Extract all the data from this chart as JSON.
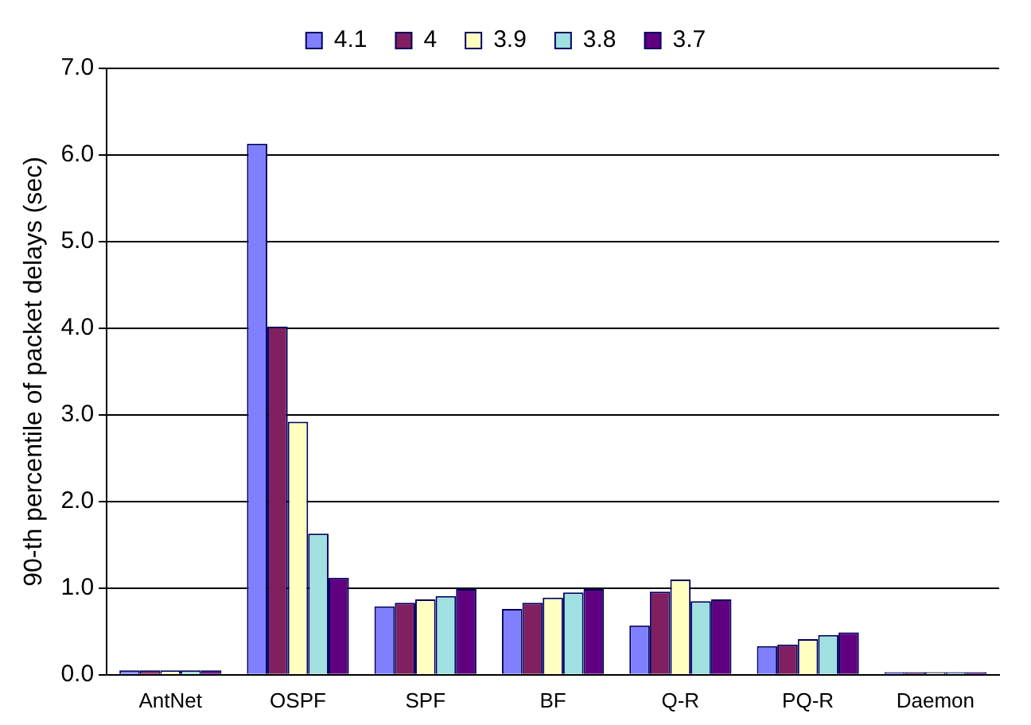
{
  "chart_data": {
    "type": "bar",
    "ylabel": "90-th percentile of packet delays (sec)",
    "categories": [
      "AntNet",
      "OSPF",
      "SPF",
      "BF",
      "Q-R",
      "PQ-R",
      "Daemon"
    ],
    "series": [
      {
        "name": "4.1",
        "color": "#8080ff",
        "values": [
          0.05,
          6.13,
          0.79,
          0.76,
          0.57,
          0.33,
          0.03
        ]
      },
      {
        "name": "4",
        "color": "#802060",
        "values": [
          0.05,
          4.02,
          0.83,
          0.83,
          0.96,
          0.35,
          0.03
        ]
      },
      {
        "name": "3.9",
        "color": "#ffffc0",
        "values": [
          0.05,
          2.92,
          0.87,
          0.89,
          1.1,
          0.41,
          0.03
        ]
      },
      {
        "name": "3.8",
        "color": "#a0e0e0",
        "values": [
          0.05,
          1.63,
          0.91,
          0.95,
          0.85,
          0.46,
          0.03
        ]
      },
      {
        "name": "3.7",
        "color": "#600080",
        "values": [
          0.05,
          1.12,
          0.99,
          0.99,
          0.87,
          0.49,
          0.03
        ]
      }
    ],
    "ylim": [
      0,
      7
    ],
    "yticks": [
      {
        "value": 0,
        "label": "0.0"
      },
      {
        "value": 1,
        "label": "1.0"
      },
      {
        "value": 2,
        "label": "2.0"
      },
      {
        "value": 3,
        "label": "3.0"
      },
      {
        "value": 4,
        "label": "4.0"
      },
      {
        "value": 5,
        "label": "5.0"
      },
      {
        "value": 6,
        "label": "6.0"
      },
      {
        "value": 7,
        "label": "7.0"
      }
    ],
    "grid": "y",
    "legend": "top"
  }
}
